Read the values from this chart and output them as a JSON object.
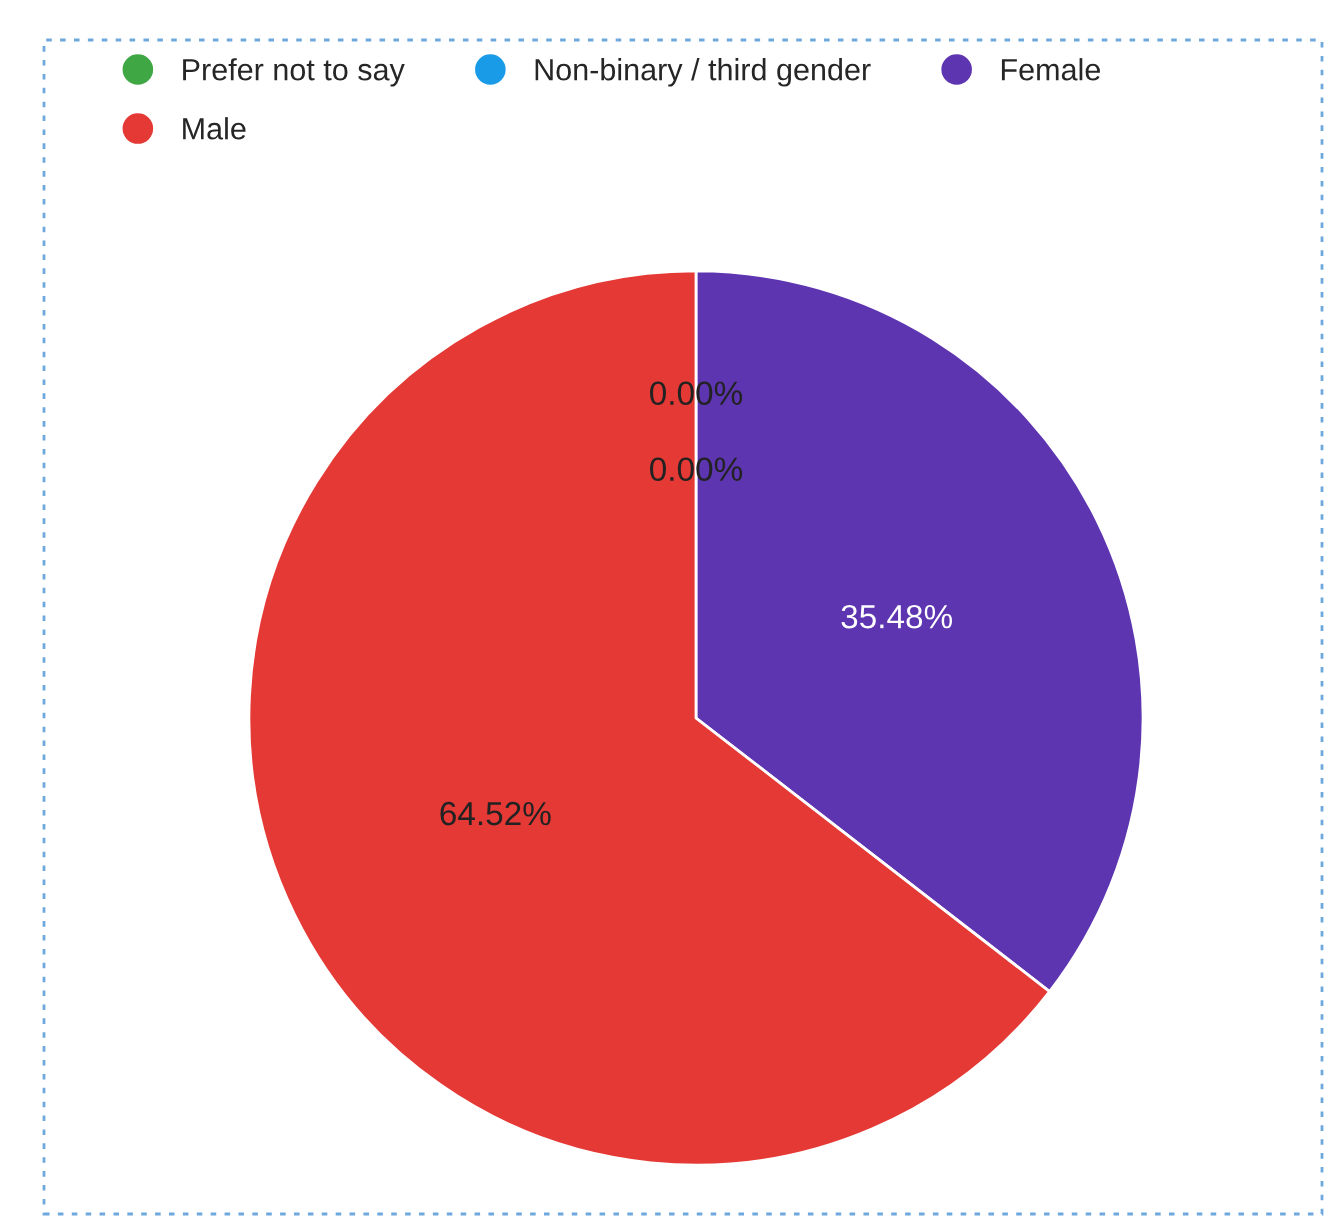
{
  "chart_data": {
    "type": "pie",
    "categories": [
      "Prefer not to say",
      "Non-binary / third gender",
      "Female",
      "Male"
    ],
    "values": [
      0,
      0,
      35.48,
      64.52
    ],
    "colors": [
      "#3fa845",
      "#1a9be8",
      "#5e35b1",
      "#e53935"
    ],
    "value_labels": [
      "0.00%",
      "0.00%",
      "35.48%",
      "64.52%"
    ],
    "legend": "top left"
  }
}
